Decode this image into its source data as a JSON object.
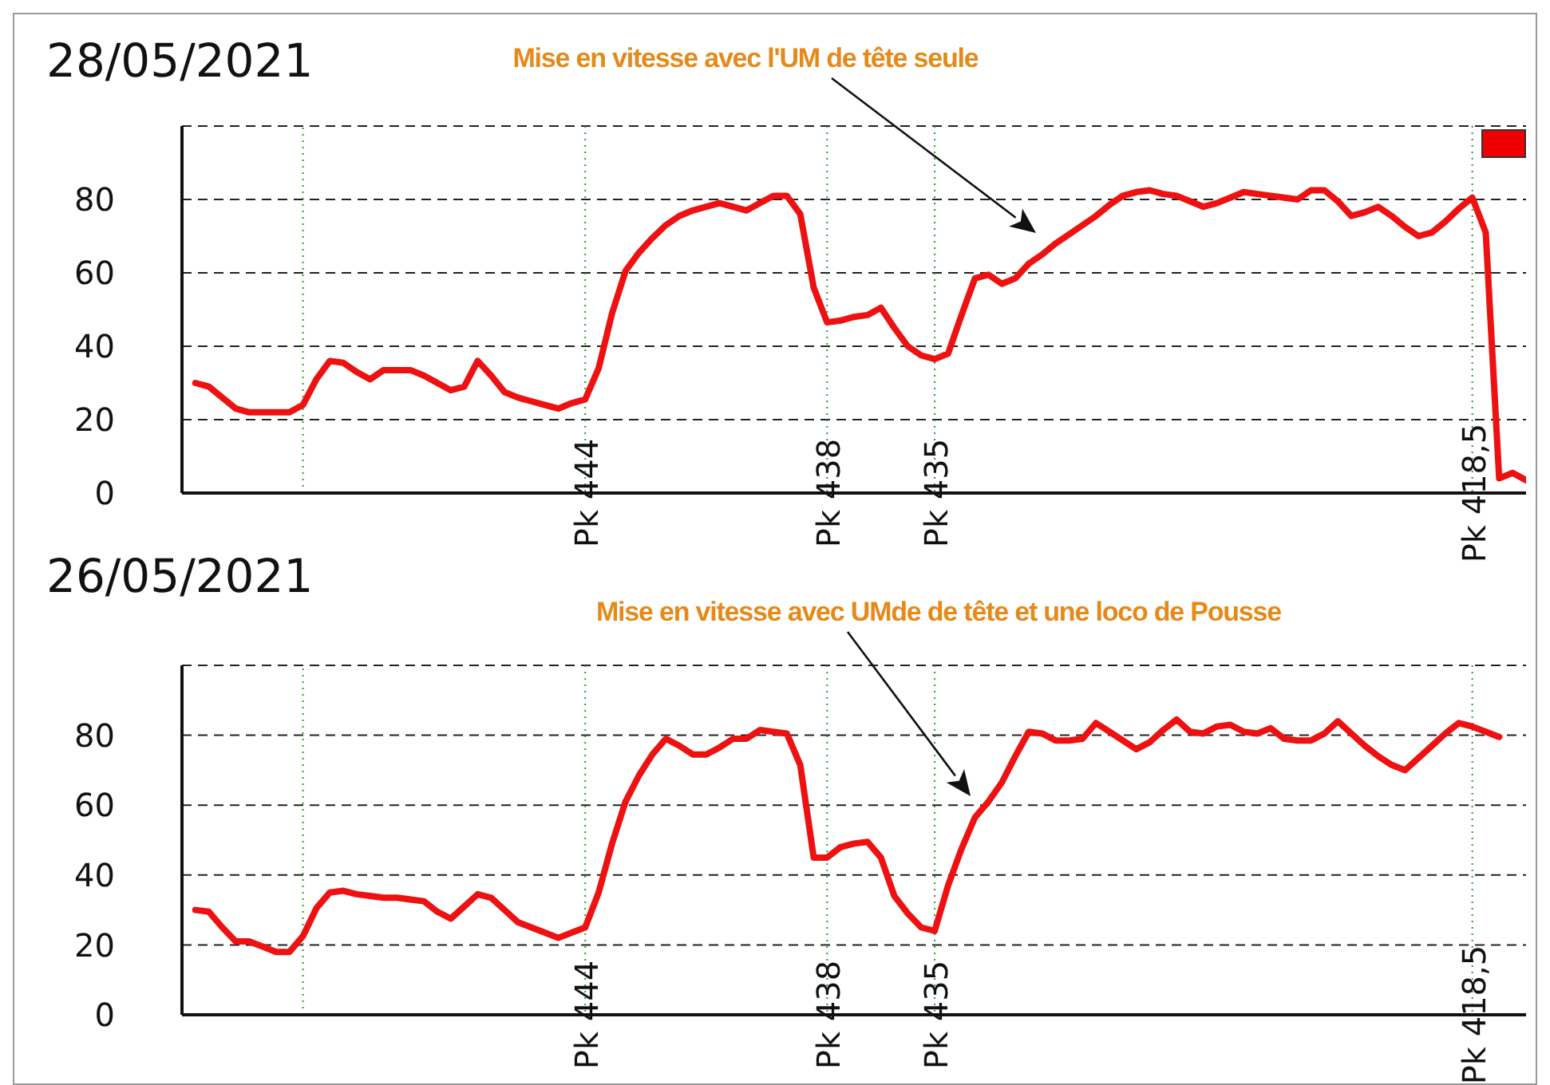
{
  "chart_data": [
    {
      "type": "line",
      "title": "28/05/2021",
      "ylim": [
        0,
        100
      ],
      "yticks": [
        0,
        20,
        40,
        60,
        80,
        {
          "value": 100,
          "label": null
        }
      ],
      "grid": true,
      "marker": "none",
      "line_style": "solid",
      "annotations": [
        "Mise en vitesse avec l'UM de tête seule"
      ],
      "categories": [
        null,
        null,
        null,
        null,
        null,
        null,
        null,
        null,
        null,
        null,
        null,
        null,
        null,
        null,
        null,
        null,
        null,
        null,
        null,
        null,
        null,
        null,
        null,
        null,
        null,
        null,
        null,
        null,
        null,
        null,
        "Pk 444",
        null,
        null,
        null,
        null,
        null,
        null,
        null,
        null,
        null,
        null,
        null,
        null,
        null,
        null,
        null,
        null,
        null,
        "Pk 438",
        null,
        null,
        null,
        null,
        null,
        null,
        null,
        "Pk 435",
        null,
        null,
        null,
        null,
        null,
        null,
        null,
        null,
        null,
        null,
        null,
        null,
        null,
        null,
        null,
        null,
        null,
        null,
        null,
        null,
        null,
        null,
        null,
        null,
        null,
        null,
        null,
        null,
        null,
        null,
        null,
        null,
        null,
        null,
        null,
        null,
        null,
        null,
        null,
        "Pk 418,5",
        null,
        null,
        null,
        null
      ],
      "series": [
        {
          "color": "#ee1111",
          "values": [
            null,
            30,
            29,
            26,
            23,
            22,
            22,
            22,
            22,
            24,
            31,
            36,
            35.5,
            33,
            31,
            33.5,
            33.5,
            33.5,
            32,
            30,
            28,
            29,
            36,
            32,
            27.5,
            26,
            25,
            24,
            23,
            24.5,
            25.5,
            34,
            49,
            60.5,
            65.5,
            69.5,
            73,
            75.5,
            77,
            78,
            79,
            78,
            77,
            79,
            81,
            81,
            76,
            56,
            46.5,
            47,
            48,
            48.5,
            50.5,
            45,
            40,
            37.5,
            36.5,
            38,
            48.5,
            58.5,
            59.5,
            57,
            58.5,
            62.5,
            65,
            68,
            70.5,
            73,
            75.5,
            78.5,
            81,
            82,
            82.5,
            81.5,
            81,
            79.5,
            78,
            79,
            80.5,
            82,
            81.5,
            81,
            80.5,
            80,
            82.5,
            82.5,
            79.5,
            75.5,
            76.5,
            78,
            75.5,
            72.5,
            70,
            71,
            74,
            77.5,
            80.5,
            71,
            4,
            5.5,
            3.5
          ]
        }
      ]
    },
    {
      "type": "line",
      "title": "26/05/2021",
      "ylim": [
        0,
        100
      ],
      "yticks": [
        0,
        20,
        40,
        60,
        80,
        {
          "value": 100,
          "label": null
        }
      ],
      "grid": true,
      "marker": "none",
      "line_style": "solid",
      "annotations": [
        "Mise en vitesse avec UMde de tête et une loco de Pousse"
      ],
      "categories": [
        null,
        null,
        null,
        null,
        null,
        null,
        null,
        null,
        null,
        null,
        null,
        null,
        null,
        null,
        null,
        null,
        null,
        null,
        null,
        null,
        null,
        null,
        null,
        null,
        null,
        null,
        null,
        null,
        null,
        null,
        "Pk 444",
        null,
        null,
        null,
        null,
        null,
        null,
        null,
        null,
        null,
        null,
        null,
        null,
        null,
        null,
        null,
        null,
        null,
        "Pk 438",
        null,
        null,
        null,
        null,
        null,
        null,
        null,
        "Pk 435",
        null,
        null,
        null,
        null,
        null,
        null,
        null,
        null,
        null,
        null,
        null,
        null,
        null,
        null,
        null,
        null,
        null,
        null,
        null,
        null,
        null,
        null,
        null,
        null,
        null,
        null,
        null,
        null,
        null,
        null,
        null,
        null,
        null,
        null,
        null,
        null,
        null,
        null,
        null,
        "Pk 418,5",
        null,
        null,
        null,
        null
      ],
      "series": [
        {
          "color": "#ee1111",
          "values": [
            null,
            30,
            29.5,
            25,
            21,
            21,
            19.5,
            18,
            18,
            22.5,
            30.5,
            35,
            35.5,
            34.5,
            34,
            33.5,
            33.5,
            33,
            32.5,
            29.5,
            27.5,
            31,
            34.5,
            33.5,
            30,
            26.5,
            25,
            23.5,
            22,
            23.5,
            25,
            35,
            49,
            61,
            68.5,
            74.5,
            79,
            77,
            74.5,
            74.5,
            76.5,
            79,
            79,
            81.5,
            81,
            80.5,
            71.5,
            45,
            45,
            48,
            49,
            49.5,
            45,
            34,
            29,
            25,
            24,
            37,
            47.5,
            56.5,
            61,
            66.5,
            74,
            81,
            80.5,
            78.5,
            78.5,
            79,
            83.5,
            81,
            78.5,
            76,
            78,
            81.5,
            84.5,
            81,
            80.5,
            82.5,
            83,
            81,
            80.5,
            82,
            79,
            78.5,
            78.5,
            80.5,
            84,
            80.5,
            77,
            74,
            71.5,
            70,
            73.5,
            77,
            80.5,
            83.5,
            82.5,
            81,
            79.5,
            null,
            null
          ]
        }
      ]
    }
  ]
}
